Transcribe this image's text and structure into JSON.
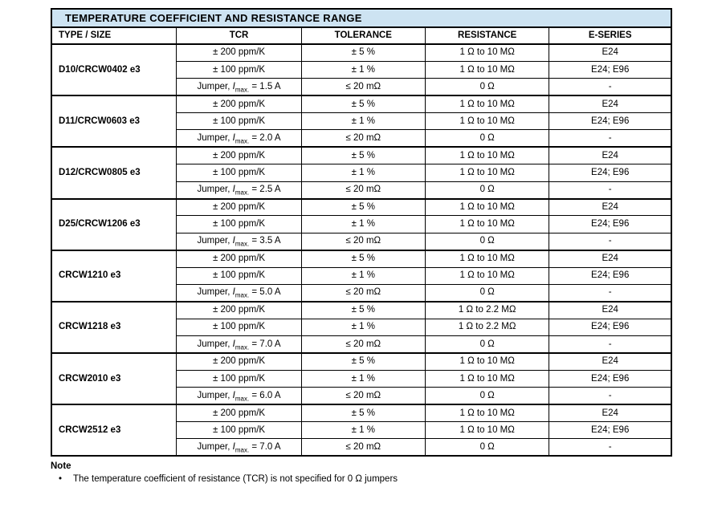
{
  "title": "TEMPERATURE COEFFICIENT AND RESISTANCE RANGE",
  "table": {
    "columns": [
      "TYPE / SIZE",
      "TCR",
      "TOLERANCE",
      "RESISTANCE",
      "E-SERIES"
    ],
    "jumper_format": {
      "prefix": "Jumper, ",
      "symbol": "I",
      "subscript": "max.",
      "equals": " = "
    },
    "groups": [
      {
        "type": "D10/CRCW0402 e3",
        "rows": [
          {
            "tcr": "± 200 ppm/K",
            "tolerance": "± 5 %",
            "resistance": "1 Ω to 10 MΩ",
            "eseries": "E24"
          },
          {
            "tcr": "± 100 ppm/K",
            "tolerance": "± 1 %",
            "resistance": "1 Ω to 10 MΩ",
            "eseries": "E24; E96"
          },
          {
            "jumper_current": "1.5 A",
            "tolerance": "≤ 20 mΩ",
            "resistance": "0 Ω",
            "eseries": "-"
          }
        ]
      },
      {
        "type": "D11/CRCW0603 e3",
        "rows": [
          {
            "tcr": "± 200 ppm/K",
            "tolerance": "± 5 %",
            "resistance": "1 Ω to 10 MΩ",
            "eseries": "E24"
          },
          {
            "tcr": "± 100 ppm/K",
            "tolerance": "± 1 %",
            "resistance": "1 Ω to 10 MΩ",
            "eseries": "E24; E96"
          },
          {
            "jumper_current": "2.0 A",
            "tolerance": "≤ 20 mΩ",
            "resistance": "0 Ω",
            "eseries": "-"
          }
        ]
      },
      {
        "type": "D12/CRCW0805 e3",
        "rows": [
          {
            "tcr": "± 200 ppm/K",
            "tolerance": "± 5 %",
            "resistance": "1 Ω to 10 MΩ",
            "eseries": "E24"
          },
          {
            "tcr": "± 100 ppm/K",
            "tolerance": "± 1 %",
            "resistance": "1 Ω to 10 MΩ",
            "eseries": "E24; E96"
          },
          {
            "jumper_current": "2.5 A",
            "tolerance": "≤ 20 mΩ",
            "resistance": "0 Ω",
            "eseries": "-"
          }
        ]
      },
      {
        "type": "D25/CRCW1206 e3",
        "rows": [
          {
            "tcr": "± 200 ppm/K",
            "tolerance": "± 5 %",
            "resistance": "1 Ω to 10 MΩ",
            "eseries": "E24"
          },
          {
            "tcr": "± 100 ppm/K",
            "tolerance": "± 1 %",
            "resistance": "1 Ω to 10 MΩ",
            "eseries": "E24; E96"
          },
          {
            "jumper_current": "3.5 A",
            "tolerance": "≤ 20 mΩ",
            "resistance": "0 Ω",
            "eseries": "-"
          }
        ]
      },
      {
        "type": "CRCW1210 e3",
        "rows": [
          {
            "tcr": "± 200 ppm/K",
            "tolerance": "± 5 %",
            "resistance": "1 Ω to 10 MΩ",
            "eseries": "E24"
          },
          {
            "tcr": "± 100 ppm/K",
            "tolerance": "± 1 %",
            "resistance": "1 Ω to 10 MΩ",
            "eseries": "E24; E96"
          },
          {
            "jumper_current": "5.0 A",
            "tolerance": "≤ 20 mΩ",
            "resistance": "0 Ω",
            "eseries": "-"
          }
        ]
      },
      {
        "type": "CRCW1218 e3",
        "rows": [
          {
            "tcr": "± 200 ppm/K",
            "tolerance": "± 5 %",
            "resistance": "1 Ω to 2.2 MΩ",
            "eseries": "E24"
          },
          {
            "tcr": "± 100 ppm/K",
            "tolerance": "± 1 %",
            "resistance": "1 Ω to 2.2 MΩ",
            "eseries": "E24; E96"
          },
          {
            "jumper_current": "7.0 A",
            "tolerance": "≤ 20 mΩ",
            "resistance": "0 Ω",
            "eseries": "-"
          }
        ]
      },
      {
        "type": "CRCW2010 e3",
        "rows": [
          {
            "tcr": "± 200 ppm/K",
            "tolerance": "± 5 %",
            "resistance": "1 Ω to 10 MΩ",
            "eseries": "E24"
          },
          {
            "tcr": "± 100 ppm/K",
            "tolerance": "± 1 %",
            "resistance": "1 Ω to 10 MΩ",
            "eseries": "E24; E96"
          },
          {
            "jumper_current": "6.0 A",
            "tolerance": "≤ 20 mΩ",
            "resistance": "0 Ω",
            "eseries": "-"
          }
        ]
      },
      {
        "type": "CRCW2512 e3",
        "rows": [
          {
            "tcr": "± 200 ppm/K",
            "tolerance": "± 5 %",
            "resistance": "1 Ω to 10 MΩ",
            "eseries": "E24"
          },
          {
            "tcr": "± 100 ppm/K",
            "tolerance": "± 1 %",
            "resistance": "1 Ω to 10 MΩ",
            "eseries": "E24; E96"
          },
          {
            "jumper_current": "7.0 A",
            "tolerance": "≤ 20 mΩ",
            "resistance": "0 Ω",
            "eseries": "-"
          }
        ]
      }
    ]
  },
  "note": {
    "heading": "Note",
    "bullet_glyph": "•",
    "text": "The temperature coefficient of resistance (TCR) is not specified for 0 Ω jumpers"
  },
  "colors": {
    "title_bar_bg": "#cde3f2",
    "border": "#000000",
    "text": "#000000"
  }
}
